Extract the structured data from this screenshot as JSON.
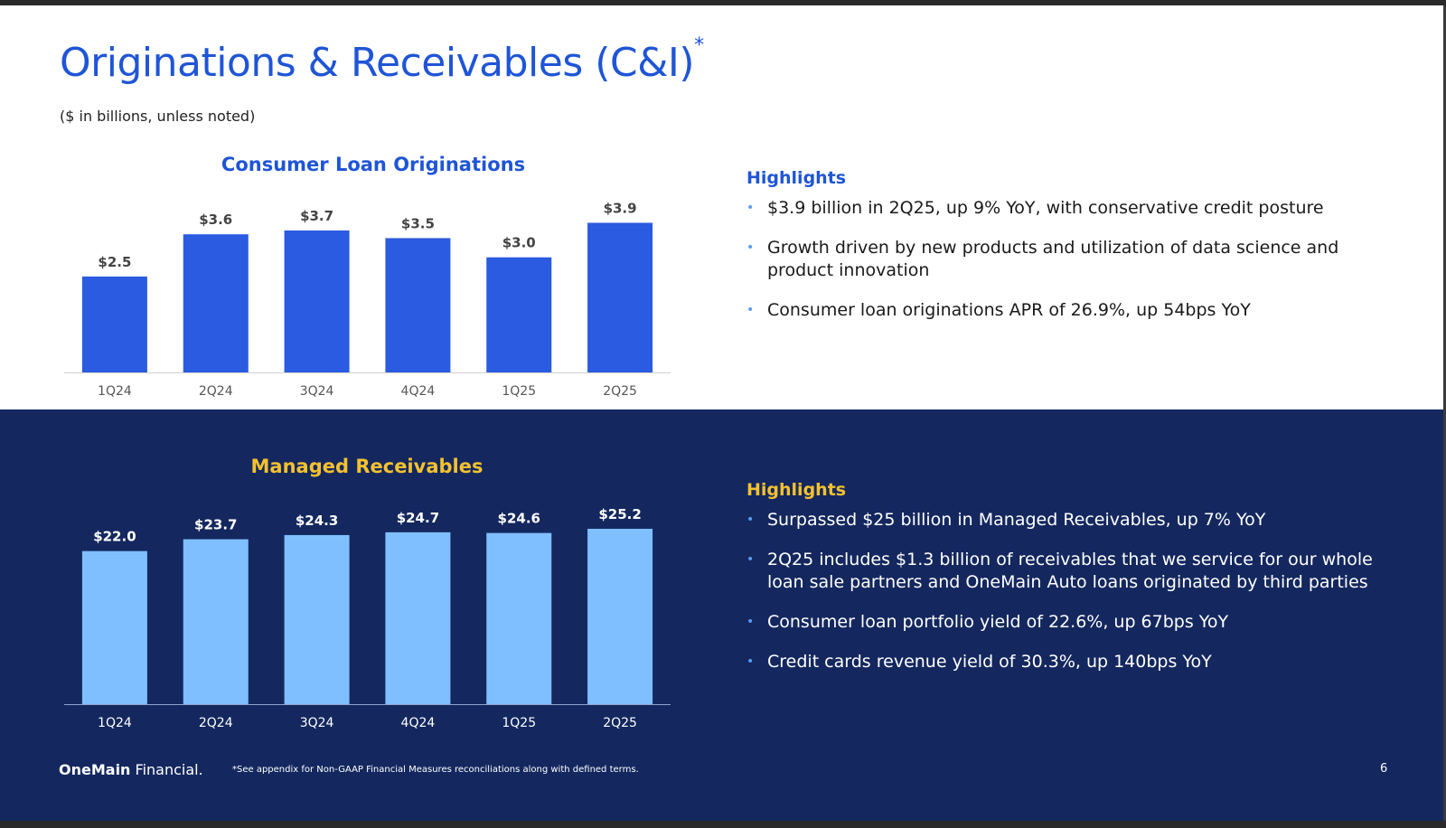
{
  "slide": {
    "title": "Originations & Receivables (C&I)",
    "title_mark": "*",
    "subtitle": "($ in billions, unless noted)",
    "footnote": "*See appendix for Non-GAAP Financial Measures reconciliations along with defined terms.",
    "page_number": "6",
    "logo": {
      "bold": "OneMain",
      "regular": "Financial."
    }
  },
  "colors": {
    "primary_blue": "#1f55d6",
    "bar_blue": "#2a5be0",
    "navy": "#14285f",
    "light_bar": "#7fbfff",
    "gold": "#f4c12f"
  },
  "top_highlights": {
    "heading": "Highlights",
    "items": [
      "$3.9 billion in 2Q25, up 9% YoY, with conservative credit posture",
      "Growth driven by new products and utilization of data science and product innovation",
      "Consumer loan originations APR of 26.9%, up 54bps YoY"
    ]
  },
  "bottom_highlights": {
    "heading": "Highlights",
    "items": [
      "Surpassed $25 billion in Managed Receivables, up 7% YoY",
      "2Q25 includes $1.3 billion of receivables that we service for our whole loan sale partners and OneMain Auto loans originated by third parties",
      "Consumer loan portfolio yield of 22.6%, up 67bps YoY",
      "Credit cards revenue yield of 30.3%, up 140bps YoY"
    ]
  },
  "chart_data": [
    {
      "type": "bar",
      "title": "Consumer Loan Originations",
      "categories": [
        "1Q24",
        "2Q24",
        "3Q24",
        "4Q24",
        "1Q25",
        "2Q25"
      ],
      "values": [
        2.5,
        3.6,
        3.7,
        3.5,
        3.0,
        3.9
      ],
      "labels": [
        "$2.5",
        "$3.6",
        "$3.7",
        "$3.5",
        "$3.0",
        "$3.9"
      ],
      "ylim": [
        0,
        4.5
      ],
      "grid": false
    },
    {
      "type": "bar",
      "title": "Managed Receivables",
      "categories": [
        "1Q24",
        "2Q24",
        "3Q24",
        "4Q24",
        "1Q25",
        "2Q25"
      ],
      "values": [
        22.0,
        23.7,
        24.3,
        24.7,
        24.6,
        25.2
      ],
      "labels": [
        "$22.0",
        "$23.7",
        "$24.3",
        "$24.7",
        "$24.6",
        "$25.2"
      ],
      "ylim": [
        0,
        26.5
      ],
      "grid": false
    }
  ]
}
